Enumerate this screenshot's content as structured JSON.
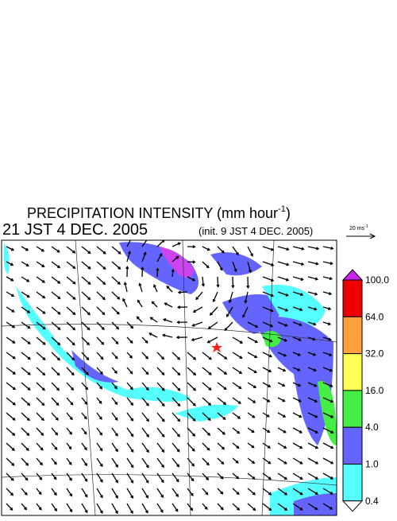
{
  "header": {
    "title": "PRECIPITATION INTENSITY (mm hour",
    "title_sup": "-1",
    "title_end": ")",
    "time": "21 JST 4 DEC. 2005",
    "init": "(init. 9 JST 4 DEC. 2005)"
  },
  "reference_arrow": {
    "label": "20 ms",
    "label_sup": "-1"
  },
  "colorbar": {
    "labels": [
      "100.0",
      "64.0",
      "32.0",
      "16.0",
      "4.0",
      "1.0",
      "0.4"
    ],
    "colors": [
      "#cc22ee",
      "#ee0000",
      "#ffa040",
      "#ffff55",
      "#44ee44",
      "#6464ff",
      "#55ffff",
      "#ffffff"
    ]
  }
}
